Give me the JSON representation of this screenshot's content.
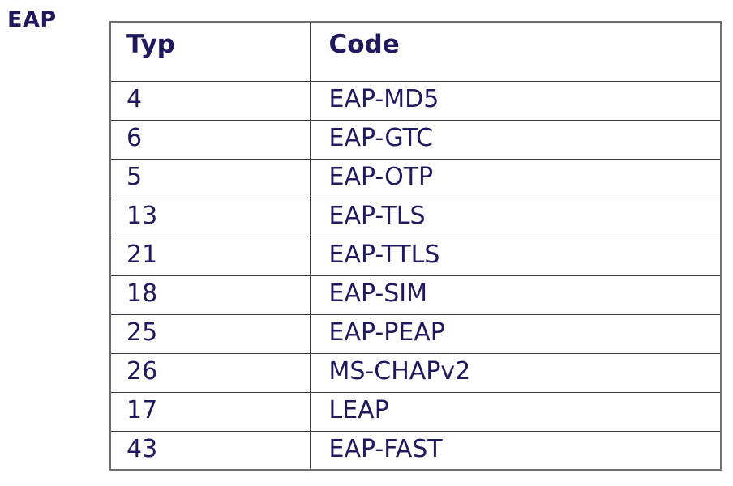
{
  "page": {
    "section_label": "EAP"
  },
  "table": {
    "headers": [
      "Typ",
      "Code"
    ],
    "rows": [
      [
        "4",
        "EAP-MD5"
      ],
      [
        "6",
        "EAP-GTC"
      ],
      [
        "5",
        "EAP-OTP"
      ],
      [
        "13",
        "EAP-TLS"
      ],
      [
        "21",
        "EAP-TTLS"
      ],
      [
        "18",
        "EAP-SIM"
      ],
      [
        "25",
        "EAP-PEAP"
      ],
      [
        "26",
        "MS-CHAPv2"
      ],
      [
        "17",
        "LEAP"
      ],
      [
        "43",
        "EAP-FAST"
      ]
    ]
  },
  "colors": {
    "text": "#1f1a5e",
    "border_outer": "#6f6f6f",
    "border_inner": "#3c3c3c",
    "background": "#ffffff"
  }
}
